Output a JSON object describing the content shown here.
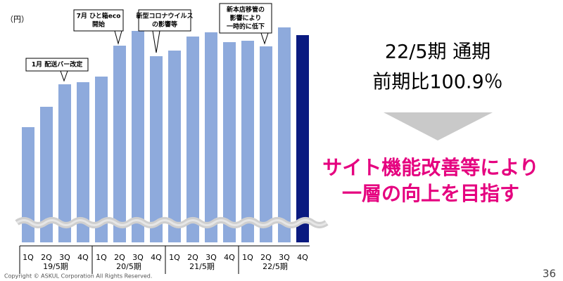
{
  "chart_data": {
    "type": "bar",
    "y_label": "（円）",
    "categories": [
      "1Q",
      "2Q",
      "3Q",
      "4Q",
      "1Q",
      "2Q",
      "3Q",
      "4Q",
      "1Q",
      "2Q",
      "3Q",
      "4Q",
      "1Q",
      "2Q",
      "3Q",
      "4Q"
    ],
    "groups": [
      "19/5期",
      "20/5期",
      "21/5期",
      "22/5期"
    ],
    "values": [
      164,
      193,
      225,
      228,
      236,
      280,
      301,
      265,
      273,
      293,
      299,
      285,
      287,
      279,
      306,
      295
    ],
    "colors": [
      "#8eaadc",
      "#8eaadc",
      "#8eaadc",
      "#8eaadc",
      "#8eaadc",
      "#8eaadc",
      "#8eaadc",
      "#8eaadc",
      "#8eaadc",
      "#8eaadc",
      "#8eaadc",
      "#8eaadc",
      "#8eaadc",
      "#8eaadc",
      "#8eaadc",
      "#0a1a80"
    ],
    "ylim": [
      0,
      320
    ],
    "annotations": [
      {
        "lines": [
          "1月 配送バー改定"
        ]
      },
      {
        "lines": [
          "7月 ひと箱eco",
          "開始"
        ]
      },
      {
        "lines": [
          "新型コロナウイルス",
          "の影響等"
        ]
      },
      {
        "lines": [
          "新本店移管の",
          "影響により",
          "一時的に低下"
        ]
      }
    ]
  },
  "summary": {
    "lines": [
      "22/5期 通期",
      "前期比100.9％"
    ]
  },
  "message": {
    "lines": [
      "サイト機能改善等により",
      "一層の向上を目指す"
    ]
  },
  "footer": {
    "copyright": "Copyright © ASKUL Corporation All Rights Reserved.",
    "page": "36"
  }
}
